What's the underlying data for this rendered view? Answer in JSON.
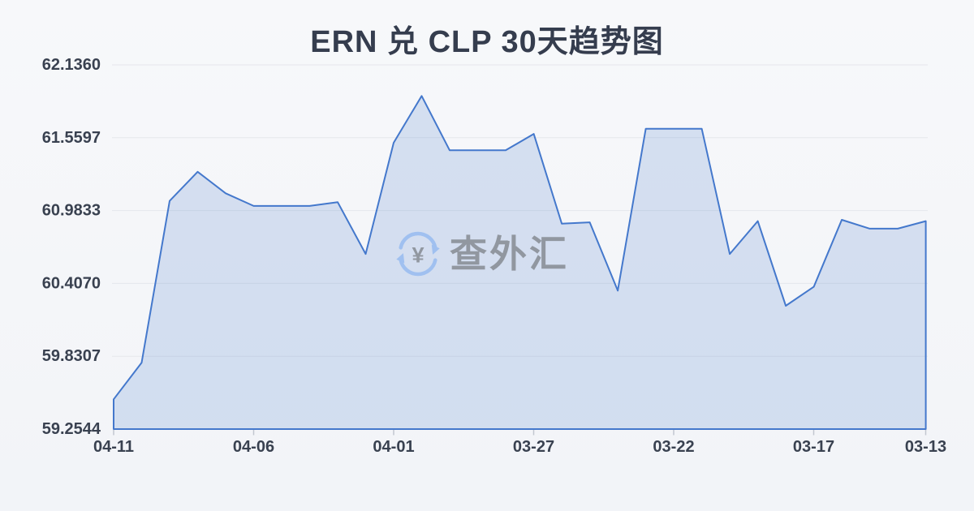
{
  "header": {
    "title": "ERN 兑 CLP 30天趋势图"
  },
  "watermark": {
    "text": "查外汇",
    "icon": "currency-exchange-icon"
  },
  "colors": {
    "background_top": "#f7f8fa",
    "background_bottom": "#f2f4f8",
    "title": "#353d4e",
    "axis_label": "#394150",
    "gridline": "#e5e7ec",
    "tick": "#c2c7d0",
    "line": "#4478cc",
    "watermark_text": "#8c919a",
    "watermark_icon": "#9cbef1"
  },
  "chart_data": {
    "type": "area",
    "title": "ERN 兑 CLP 30天趋势图",
    "x": [
      "04-11",
      "04-10",
      "04-09",
      "04-08",
      "04-07",
      "04-06",
      "04-05",
      "04-04",
      "04-03",
      "04-02",
      "04-01",
      "03-31",
      "03-30",
      "03-29",
      "03-28",
      "03-27",
      "03-26",
      "03-25",
      "03-24",
      "03-23",
      "03-22",
      "03-21",
      "03-20",
      "03-19",
      "03-18",
      "03-17",
      "03-16",
      "03-15",
      "03-14",
      "03-13"
    ],
    "values": [
      59.49,
      59.78,
      61.06,
      61.29,
      61.12,
      61.02,
      61.02,
      61.02,
      61.05,
      60.64,
      61.52,
      61.89,
      61.46,
      61.46,
      61.46,
      61.59,
      60.88,
      60.89,
      60.35,
      61.63,
      61.63,
      61.63,
      60.64,
      60.9,
      60.23,
      60.38,
      60.91,
      60.84,
      60.84,
      60.9
    ],
    "y_ticks": [
      62.136,
      61.5597,
      60.9833,
      60.407,
      59.8307,
      59.2544
    ],
    "y_tick_labels": [
      "62.1360",
      "61.5597",
      "60.9833",
      "60.4070",
      "59.8307",
      "59.2544"
    ],
    "x_tick_labels": [
      "04-11",
      "04-06",
      "04-01",
      "03-27",
      "03-22",
      "03-17",
      "03-13"
    ],
    "x_tick_indices": [
      0,
      5,
      10,
      15,
      20,
      25,
      29
    ],
    "ylim": [
      59.2544,
      62.136
    ],
    "xlabel": "",
    "ylabel": "",
    "grid": "horizontal",
    "legend": false,
    "note_x_axis_direction": "dates run newest (04-11) at left to oldest (03-13) at right"
  }
}
